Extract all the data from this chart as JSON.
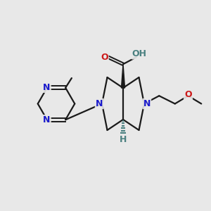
{
  "bg_color": "#e8e8e8",
  "bond_color": "#1a1a1a",
  "N_color": "#1a1acc",
  "O_color": "#cc1a1a",
  "H_color": "#4a8080",
  "figsize": [
    3.0,
    3.0
  ],
  "dpi": 100,
  "xlim": [
    0,
    12
  ],
  "ylim": [
    0,
    12
  ]
}
